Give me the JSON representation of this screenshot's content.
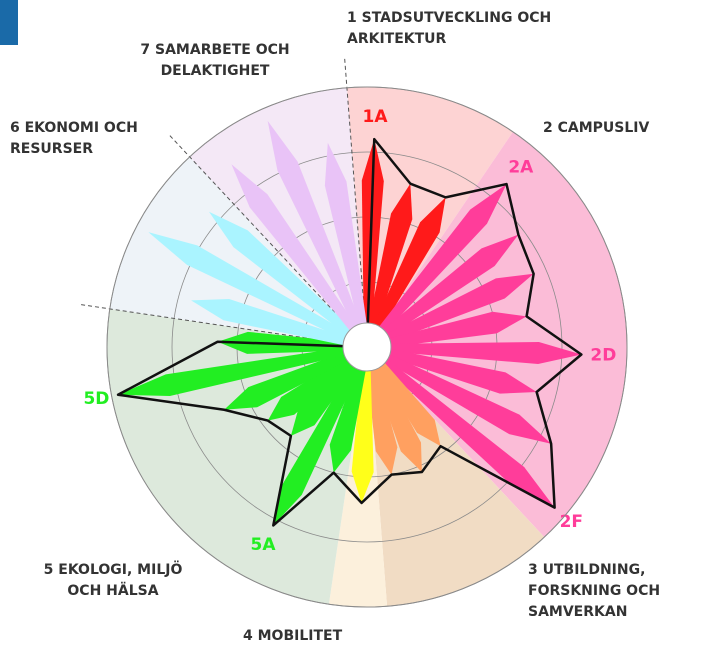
{
  "chart_data": {
    "type": "polar-bar",
    "ylim": [
      0,
      4
    ],
    "yticks": [
      1,
      2,
      3,
      4
    ],
    "grid": true,
    "series": [
      {
        "name": "1 STADSUTVECKLING OCH ARKITEKTUR",
        "color": "#ff1a1a",
        "background": "#fdd3d3",
        "outline": true,
        "values": [
          3.2,
          2.6,
          2.6
        ],
        "point_labels": [
          "1A",
          null,
          null
        ]
      },
      {
        "name": "2 CAMPUSLIV",
        "color": "#ff3d9a",
        "background": "#fbbcd7",
        "outline": true,
        "values": [
          3.3,
          2.9,
          2.8,
          2.5,
          3.3,
          2.7,
          3.2,
          3.8
        ],
        "point_labels": [
          "2A",
          null,
          null,
          null,
          "2D",
          null,
          null,
          "2F"
        ]
      },
      {
        "name": "3 UTBILDNING, FORSKNING OCH SAMVERKAN",
        "color": "#ffa060",
        "background": "#f1dcc4",
        "outline": true,
        "values": [
          1.9,
          2.1,
          2.0
        ],
        "point_labels": [
          null,
          null,
          null
        ]
      },
      {
        "name": "4 MOBILITET",
        "color": "#ffff1a",
        "background": "#fcf0dc",
        "outline": true,
        "values": [
          2.4
        ],
        "point_labels": [
          null
        ]
      },
      {
        "name": "5 EKOLOGI, MILJÖ OCH HÄLSA",
        "color": "#22ee22",
        "background": "#dde9dc",
        "outline": true,
        "values": [
          2.0,
          3.1,
          1.8,
          1.9,
          2.4,
          3.9,
          2.3
        ],
        "point_labels": [
          null,
          "5A",
          null,
          null,
          null,
          "5D",
          null
        ]
      },
      {
        "name": "6 EKONOMI OCH RESURSER",
        "color": "#aaf4ff",
        "background": "#eef3f8",
        "outline": false,
        "values": [
          2.8,
          3.8,
          3.2
        ],
        "point_labels": [
          null,
          null,
          null
        ]
      },
      {
        "name": "7 SAMARBETE OCH DELAKTIGHET",
        "color": "#e9c3f7",
        "background": "#f4e8f6",
        "outline": false,
        "values": [
          3.5,
          3.8,
          3.2
        ],
        "point_labels": [
          null,
          null,
          null
        ]
      }
    ]
  }
}
